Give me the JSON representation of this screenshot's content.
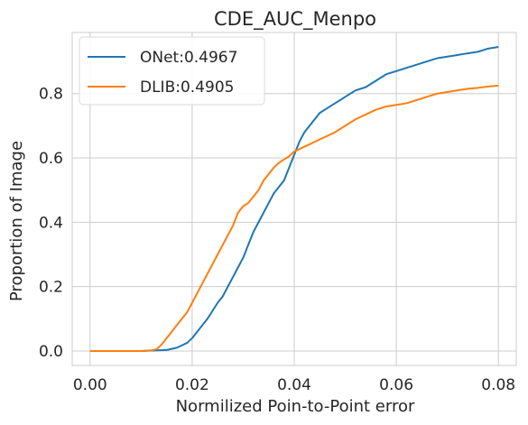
{
  "chart_data": {
    "type": "line",
    "title": "CDE_AUC_Menpo",
    "xlabel": "Normilized Poin-to-Point error",
    "ylabel": "Proportion of Image",
    "xlim": [
      -0.0035,
      0.0835
    ],
    "ylim": [
      -0.045,
      0.99
    ],
    "xticks": [
      0.0,
      0.02,
      0.04,
      0.06,
      0.08
    ],
    "xtick_labels": [
      "0.00",
      "0.02",
      "0.04",
      "0.06",
      "0.08"
    ],
    "yticks": [
      0.0,
      0.2,
      0.4,
      0.6,
      0.8
    ],
    "ytick_labels": [
      "0.0",
      "0.2",
      "0.4",
      "0.6",
      "0.8"
    ],
    "grid": true,
    "legend_position": "top-left",
    "series": [
      {
        "name": "ONet:0.4967",
        "color": "#1f77b4",
        "x": [
          0.0,
          0.01,
          0.015,
          0.017,
          0.019,
          0.02,
          0.021,
          0.022,
          0.023,
          0.024,
          0.025,
          0.026,
          0.027,
          0.028,
          0.029,
          0.03,
          0.031,
          0.032,
          0.033,
          0.034,
          0.035,
          0.036,
          0.037,
          0.038,
          0.039,
          0.04,
          0.041,
          0.042,
          0.043,
          0.044,
          0.045,
          0.046,
          0.048,
          0.05,
          0.052,
          0.054,
          0.056,
          0.058,
          0.06,
          0.062,
          0.064,
          0.066,
          0.068,
          0.07,
          0.072,
          0.074,
          0.076,
          0.078,
          0.08
        ],
        "y": [
          0.0,
          0.0,
          0.003,
          0.01,
          0.025,
          0.04,
          0.06,
          0.08,
          0.1,
          0.125,
          0.15,
          0.17,
          0.2,
          0.23,
          0.26,
          0.29,
          0.33,
          0.37,
          0.4,
          0.43,
          0.46,
          0.49,
          0.51,
          0.53,
          0.57,
          0.61,
          0.65,
          0.68,
          0.7,
          0.72,
          0.74,
          0.75,
          0.77,
          0.79,
          0.81,
          0.82,
          0.84,
          0.86,
          0.87,
          0.88,
          0.89,
          0.9,
          0.91,
          0.915,
          0.92,
          0.925,
          0.93,
          0.94,
          0.945
        ]
      },
      {
        "name": "DLIB:0.4905",
        "color": "#ff7f0e",
        "x": [
          0.0,
          0.01,
          0.012,
          0.013,
          0.014,
          0.015,
          0.016,
          0.017,
          0.018,
          0.019,
          0.02,
          0.021,
          0.022,
          0.023,
          0.024,
          0.025,
          0.026,
          0.027,
          0.028,
          0.029,
          0.03,
          0.031,
          0.032,
          0.033,
          0.034,
          0.035,
          0.036,
          0.037,
          0.038,
          0.039,
          0.04,
          0.042,
          0.044,
          0.046,
          0.048,
          0.05,
          0.052,
          0.054,
          0.056,
          0.058,
          0.06,
          0.062,
          0.064,
          0.066,
          0.068,
          0.07,
          0.072,
          0.074,
          0.076,
          0.078,
          0.08
        ],
        "y": [
          0.0,
          0.0,
          0.002,
          0.005,
          0.02,
          0.04,
          0.06,
          0.08,
          0.1,
          0.12,
          0.15,
          0.18,
          0.21,
          0.24,
          0.27,
          0.3,
          0.33,
          0.36,
          0.39,
          0.43,
          0.45,
          0.46,
          0.48,
          0.5,
          0.53,
          0.55,
          0.57,
          0.585,
          0.595,
          0.605,
          0.62,
          0.635,
          0.65,
          0.665,
          0.68,
          0.7,
          0.72,
          0.735,
          0.75,
          0.76,
          0.765,
          0.77,
          0.78,
          0.79,
          0.8,
          0.805,
          0.81,
          0.815,
          0.818,
          0.822,
          0.825
        ]
      }
    ]
  }
}
